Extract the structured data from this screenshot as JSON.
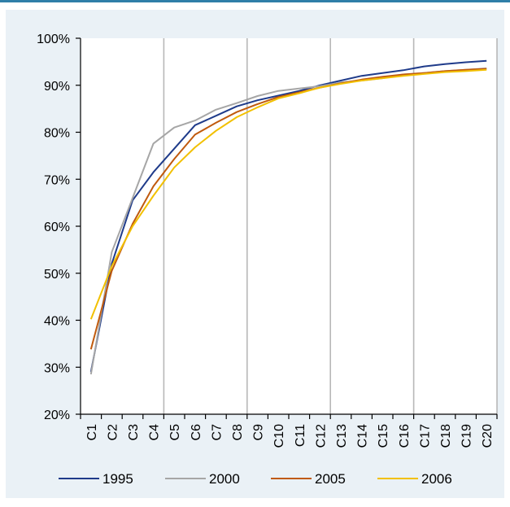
{
  "chart_data": {
    "type": "line",
    "categories": [
      "C1",
      "C2",
      "C3",
      "C4",
      "C5",
      "C6",
      "C7",
      "C8",
      "C9",
      "C10",
      "C11",
      "C12",
      "C13",
      "C14",
      "C15",
      "C16",
      "C17",
      "C18",
      "C19",
      "C20"
    ],
    "ylim": [
      20,
      100
    ],
    "yticks": [
      "20%",
      "30%",
      "40%",
      "50%",
      "60%",
      "70%",
      "80%",
      "90%",
      "100%"
    ],
    "grid": "vertical every 4 categories",
    "legend_position": "bottom",
    "series": [
      {
        "name": "1995",
        "color": "#1f3b8a",
        "values": [
          29.0,
          52.0,
          65.5,
          71.5,
          76.5,
          81.5,
          83.5,
          85.5,
          86.8,
          87.8,
          88.8,
          90.0,
          91.0,
          92.0,
          92.6,
          93.2,
          94.0,
          94.5,
          94.9,
          95.2
        ]
      },
      {
        "name": "2000",
        "color": "#a6a6a6",
        "values": [
          28.5,
          54.5,
          66.0,
          77.6,
          81.0,
          82.5,
          84.8,
          86.2,
          87.7,
          88.8,
          89.3,
          89.8,
          90.6,
          91.0,
          91.5,
          92.3,
          92.6,
          93.0,
          93.3,
          93.6
        ]
      },
      {
        "name": "2005",
        "color": "#c05a0e",
        "values": [
          33.8,
          50.5,
          60.5,
          68.5,
          74.3,
          79.5,
          82.0,
          84.3,
          86.0,
          87.5,
          88.5,
          89.5,
          90.4,
          91.2,
          91.8,
          92.3,
          92.6,
          93.0,
          93.3,
          93.5
        ]
      },
      {
        "name": "2006",
        "color": "#f2c000",
        "values": [
          40.2,
          51.5,
          60.0,
          66.5,
          72.5,
          76.8,
          80.3,
          83.2,
          85.3,
          87.2,
          88.3,
          89.5,
          90.3,
          91.0,
          91.5,
          92.0,
          92.4,
          92.8,
          93.0,
          93.3
        ]
      }
    ]
  }
}
